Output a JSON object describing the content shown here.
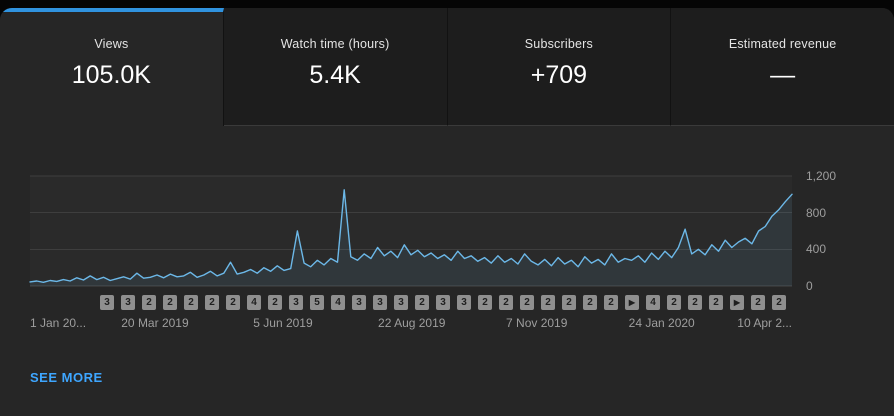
{
  "tabs": [
    {
      "id": "views",
      "label": "Views",
      "value": "105.0K",
      "selected": true
    },
    {
      "id": "watch-time",
      "label": "Watch time (hours)",
      "value": "5.4K",
      "selected": false
    },
    {
      "id": "subscribers",
      "label": "Subscribers",
      "value": "+709",
      "selected": false
    },
    {
      "id": "estimated-revenue",
      "label": "Estimated revenue",
      "value": "—",
      "selected": false
    }
  ],
  "chart_data": {
    "type": "line",
    "title": "",
    "ylabel": "",
    "xlabel": "",
    "ylim": [
      0,
      1200
    ],
    "grid": true,
    "legend": "none",
    "line_color": "#6cb8e8",
    "y_axis_labels": [
      "1,200",
      "800",
      "400",
      "0"
    ],
    "x_axis_labels": [
      "1 Jan 20...",
      "20 Mar 2019",
      "5 Jun 2019",
      "22 Aug 2019",
      "7 Nov 2019",
      "24 Jan 2020",
      "10 Apr 2..."
    ],
    "x_label_positions_pct": [
      0,
      16.4,
      33.2,
      50.1,
      66.5,
      82.9,
      100
    ],
    "series": [
      {
        "name": "Views",
        "values": [
          45,
          55,
          40,
          60,
          50,
          70,
          55,
          90,
          65,
          110,
          70,
          95,
          60,
          80,
          100,
          75,
          140,
          85,
          95,
          120,
          90,
          130,
          100,
          110,
          150,
          95,
          120,
          160,
          110,
          140,
          260,
          130,
          150,
          180,
          140,
          200,
          160,
          220,
          170,
          190,
          600,
          250,
          210,
          280,
          230,
          300,
          260,
          1050,
          320,
          280,
          350,
          300,
          420,
          330,
          380,
          310,
          450,
          340,
          390,
          320,
          360,
          300,
          340,
          280,
          380,
          300,
          330,
          270,
          310,
          250,
          330,
          260,
          300,
          240,
          350,
          270,
          230,
          290,
          220,
          310,
          240,
          280,
          210,
          320,
          250,
          290,
          230,
          350,
          260,
          300,
          280,
          330,
          260,
          360,
          290,
          380,
          310,
          420,
          620,
          350,
          400,
          340,
          450,
          380,
          500,
          420,
          480,
          520,
          460,
          600,
          650,
          760,
          830,
          920,
          1000
        ]
      }
    ]
  },
  "upload_markers": [
    "3",
    "3",
    "2",
    "2",
    "2",
    "2",
    "2",
    "4",
    "2",
    "3",
    "5",
    "4",
    "3",
    "3",
    "3",
    "2",
    "3",
    "3",
    "2",
    "2",
    "2",
    "2",
    "2",
    "2",
    "2",
    "▶",
    "4",
    "2",
    "2",
    "2",
    "▶",
    "2",
    "2"
  ],
  "see_more_label": "SEE MORE",
  "colors": {
    "accent": "#3ea6ff",
    "tab_indicator": "#3093df",
    "chart_line": "#6cb8e8",
    "badge_background": "#8f8f8f",
    "card_background": "#262626"
  }
}
